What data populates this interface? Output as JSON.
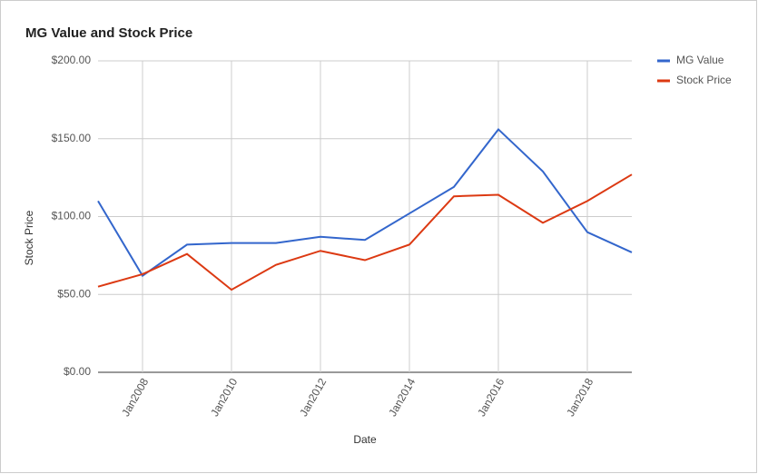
{
  "chart_data": {
    "type": "line",
    "title": "MG Value and Stock Price",
    "x_label": "Date",
    "y_label": "Stock Price",
    "x": [
      2007,
      2008,
      2009,
      2010,
      2011,
      2012,
      2013,
      2014,
      2015,
      2016,
      2017,
      2018,
      2019
    ],
    "xlim": [
      2007,
      2019
    ],
    "xticks": [
      {
        "value": 2008,
        "label": "Jan2008"
      },
      {
        "value": 2010,
        "label": "Jan2010"
      },
      {
        "value": 2012,
        "label": "Jan2012"
      },
      {
        "value": 2014,
        "label": "Jan2014"
      },
      {
        "value": 2016,
        "label": "Jan2016"
      },
      {
        "value": 2018,
        "label": "Jan2018"
      }
    ],
    "ylim": [
      0,
      200
    ],
    "yticks": [
      {
        "value": 0,
        "label": "$0.00"
      },
      {
        "value": 50,
        "label": "$50.00"
      },
      {
        "value": 100,
        "label": "$100.00"
      },
      {
        "value": 150,
        "label": "$150.00"
      },
      {
        "value": 200,
        "label": "$200.00"
      }
    ],
    "grid": true,
    "legend": "right",
    "series": [
      {
        "name": "MG Value",
        "color": "#3366cc",
        "values": [
          110,
          62,
          82,
          83,
          83,
          87,
          85,
          102,
          119,
          156,
          129,
          90,
          77
        ]
      },
      {
        "name": "Stock Price",
        "color": "#dc3912",
        "values": [
          55,
          63,
          76,
          53,
          69,
          78,
          72,
          82,
          113,
          114,
          96,
          110,
          127
        ]
      }
    ]
  }
}
